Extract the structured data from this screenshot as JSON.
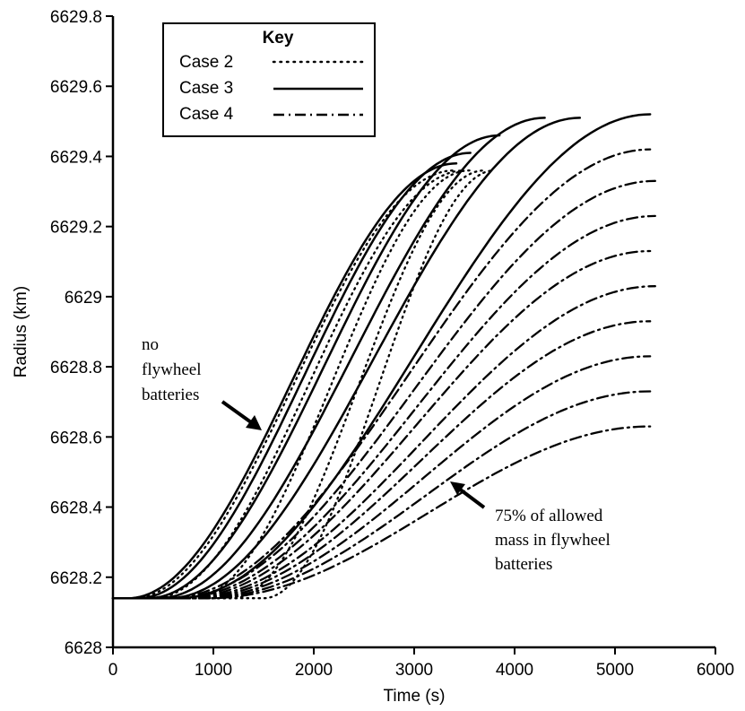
{
  "chart_data": {
    "type": "line",
    "title": "",
    "xlabel": "Time (s)",
    "ylabel": "Radius (km)",
    "xlim": [
      0,
      6000
    ],
    "ylim": [
      6628,
      6629.8
    ],
    "x_ticks": [
      0,
      1000,
      2000,
      3000,
      4000,
      5000,
      6000
    ],
    "x_tick_labels": [
      "0",
      "1000",
      "2000",
      "3000",
      "4000",
      "5000",
      "6000"
    ],
    "y_ticks": [
      6628,
      6628.2,
      6628.4,
      6628.6,
      6628.8,
      6629,
      6629.2,
      6629.4,
      6629.6,
      6629.8
    ],
    "y_tick_labels": [
      "6628",
      "6628.2",
      "6628.4",
      "6628.6",
      "6628.8",
      "6629",
      "6629.2",
      "6629.4",
      "6629.6",
      "6629.8"
    ],
    "grid": false,
    "legend": {
      "title": "Key",
      "placement": "top-left",
      "entries": [
        {
          "label": "Case 2",
          "style": "dotted"
        },
        {
          "label": "Case 3",
          "style": "solid"
        },
        {
          "label": "Case 4",
          "style": "dash-dot"
        }
      ]
    },
    "start": {
      "x": 0,
      "y": 6628.14
    },
    "series_note": "Each curve is a smooth S-shaped rise from the common start, expressed by t0 (end of flat segment), t1 (end time) and y1 (final radius).",
    "series": [
      {
        "style": "dotted",
        "t0": 200,
        "t1": 3400,
        "y1": 6629.36
      },
      {
        "style": "dotted",
        "t0": 400,
        "t1": 3500,
        "y1": 6629.36
      },
      {
        "style": "dotted",
        "t0": 800,
        "t1": 3550,
        "y1": 6629.36
      },
      {
        "style": "dotted",
        "t0": 1200,
        "t1": 3700,
        "y1": 6629.36
      },
      {
        "style": "dotted",
        "t0": 1500,
        "t1": 3800,
        "y1": 6629.36
      },
      {
        "style": "solid",
        "t0": 150,
        "t1": 3420,
        "y1": 6629.38
      },
      {
        "style": "solid",
        "t0": 250,
        "t1": 3560,
        "y1": 6629.41
      },
      {
        "style": "solid",
        "t0": 350,
        "t1": 3850,
        "y1": 6629.46
      },
      {
        "style": "solid",
        "t0": 450,
        "t1": 4300,
        "y1": 6629.51
      },
      {
        "style": "solid",
        "t0": 550,
        "t1": 4650,
        "y1": 6629.51
      },
      {
        "style": "solid",
        "t0": 650,
        "t1": 5350,
        "y1": 6629.52
      },
      {
        "style": "dash-dot",
        "t0": 550,
        "t1": 5350,
        "y1": 6629.42
      },
      {
        "style": "dash-dot",
        "t0": 600,
        "t1": 5400,
        "y1": 6629.33
      },
      {
        "style": "dash-dot",
        "t0": 650,
        "t1": 5400,
        "y1": 6629.23
      },
      {
        "style": "dash-dot",
        "t0": 700,
        "t1": 5350,
        "y1": 6629.13
      },
      {
        "style": "dash-dot",
        "t0": 750,
        "t1": 5400,
        "y1": 6629.03
      },
      {
        "style": "dash-dot",
        "t0": 800,
        "t1": 5350,
        "y1": 6628.93
      },
      {
        "style": "dash-dot",
        "t0": 850,
        "t1": 5350,
        "y1": 6628.83
      },
      {
        "style": "dash-dot",
        "t0": 900,
        "t1": 5350,
        "y1": 6628.73
      },
      {
        "style": "dash-dot",
        "t0": 950,
        "t1": 5350,
        "y1": 6628.63
      }
    ],
    "annotations": [
      {
        "lines": [
          "no",
          "flywheel",
          "batteries"
        ],
        "arrow_to": {
          "x": 1450,
          "y": 6628.7
        }
      },
      {
        "lines": [
          "75% of allowed",
          "mass in flywheel",
          "batteries"
        ],
        "arrow_to": {
          "x": 3350,
          "y": 6628.46
        }
      }
    ]
  }
}
